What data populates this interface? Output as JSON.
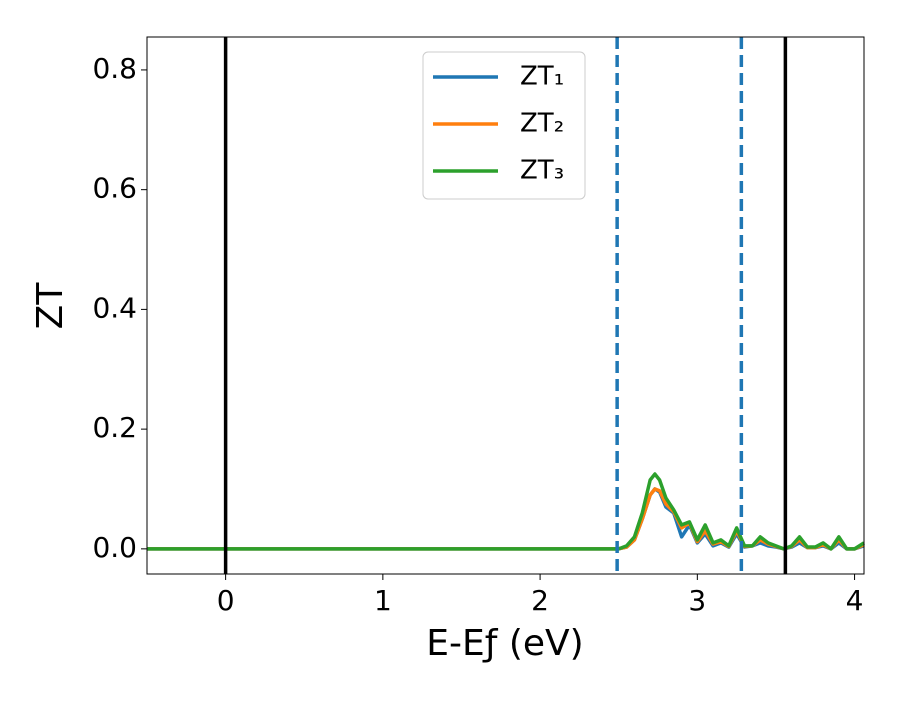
{
  "chart_data": {
    "type": "line",
    "xlabel": "E-Eƒ (eV)",
    "ylabel": "ZT",
    "x": [
      -0.5,
      2.45,
      2.5,
      2.55,
      2.6,
      2.65,
      2.7,
      2.73,
      2.76,
      2.8,
      2.85,
      2.9,
      2.95,
      3.0,
      3.05,
      3.1,
      3.15,
      3.2,
      3.25,
      3.3,
      3.35,
      3.4,
      3.45,
      3.5,
      3.55,
      3.6,
      3.65,
      3.7,
      3.75,
      3.8,
      3.85,
      3.9,
      3.95,
      4.0,
      4.06
    ],
    "series": [
      {
        "name": "ZT₁",
        "color": "#1f77b4",
        "values": [
          0,
          0,
          0,
          0.003,
          0.015,
          0.05,
          0.09,
          0.1,
          0.095,
          0.07,
          0.06,
          0.02,
          0.04,
          0.01,
          0.025,
          0.005,
          0.01,
          0.003,
          0.025,
          0.003,
          0.005,
          0.01,
          0.005,
          0.003,
          0,
          0.003,
          0.01,
          0.002,
          0.002,
          0.005,
          0,
          0.01,
          0,
          0,
          0.005
        ]
      },
      {
        "name": "ZT₂",
        "color": "#ff7f0e",
        "values": [
          0,
          0,
          0,
          0.003,
          0.015,
          0.05,
          0.09,
          0.1,
          0.097,
          0.075,
          0.062,
          0.035,
          0.043,
          0.012,
          0.03,
          0.008,
          0.012,
          0.004,
          0.03,
          0.004,
          0.005,
          0.015,
          0.008,
          0.004,
          0,
          0.004,
          0.015,
          0.002,
          0.002,
          0.007,
          0,
          0.015,
          0,
          0,
          0.007
        ]
      },
      {
        "name": "ZT₃",
        "color": "#2ca02c",
        "values": [
          0,
          0,
          0,
          0.005,
          0.02,
          0.06,
          0.115,
          0.125,
          0.115,
          0.085,
          0.065,
          0.04,
          0.045,
          0.015,
          0.04,
          0.01,
          0.015,
          0.005,
          0.035,
          0.005,
          0.005,
          0.02,
          0.01,
          0.005,
          0,
          0.005,
          0.02,
          0.003,
          0.003,
          0.01,
          0,
          0.02,
          0,
          0,
          0.01
        ]
      }
    ],
    "vlines": [
      {
        "x": 0,
        "color": "#000000",
        "dashed": false
      },
      {
        "x": 3.56,
        "color": "#000000",
        "dashed": false
      },
      {
        "x": 2.49,
        "color": "#1f77b4",
        "dashed": true
      },
      {
        "x": 3.28,
        "color": "#1f77b4",
        "dashed": true
      }
    ],
    "xlim": [
      -0.5,
      4.06
    ],
    "ylim": [
      -0.042,
      0.855
    ],
    "xticks": [
      0,
      1,
      2,
      3,
      4
    ],
    "yticks": [
      {
        "value": 0,
        "label": "0.0"
      },
      0.2,
      0.4,
      0.6,
      0.8
    ],
    "legend": "upper center",
    "grid": false
  }
}
